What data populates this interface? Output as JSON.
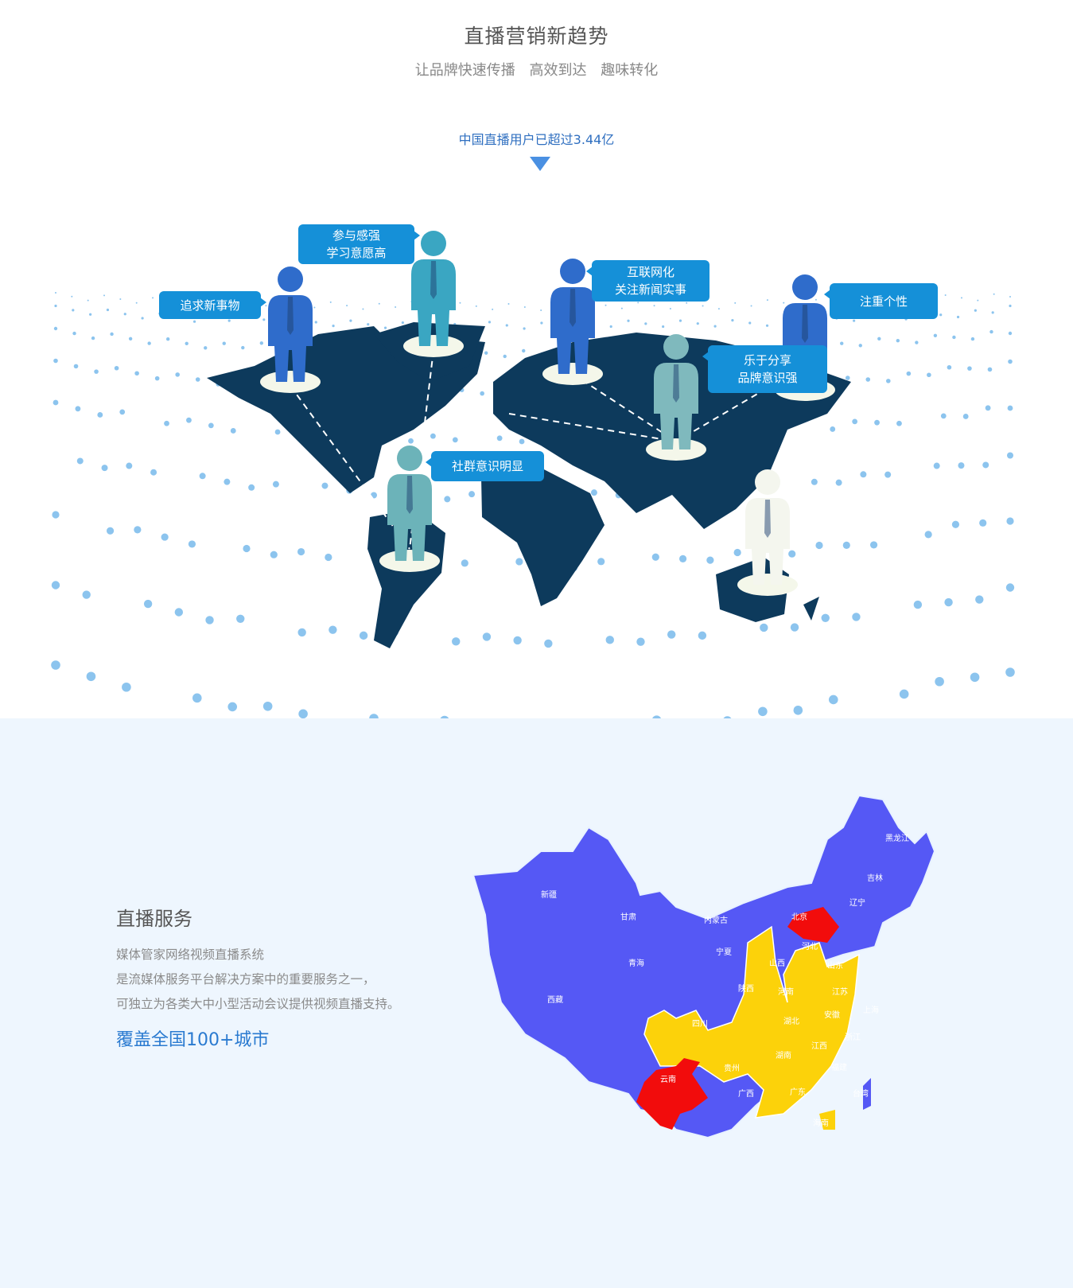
{
  "header": {
    "title": "直播营销新趋势",
    "subtitle": "让品牌快速传播 高效到达 趣味转化",
    "stat": "中国直播用户已超过3.44亿",
    "arrow_icon": "triangle-down-icon"
  },
  "world_map": {
    "land_color": "#0d3a5c",
    "dot_color": "#8cc4ee",
    "bubble_color": "#1590d8",
    "bubbles": [
      {
        "lines": [
          "追求新事物"
        ]
      },
      {
        "lines": [
          "参与感强",
          "学习意愿高"
        ]
      },
      {
        "lines": [
          "互联网化",
          "关注新闻实事"
        ]
      },
      {
        "lines": [
          "注重个性"
        ]
      },
      {
        "lines": [
          "乐于分享",
          "品牌意识强"
        ]
      },
      {
        "lines": [
          "社群意识明显"
        ]
      }
    ],
    "figure_colors": [
      "#2f6ccb",
      "#3aa6c2",
      "#2f6ccb",
      "#7fb9bd",
      "#2f6ccb",
      "#6cb3b9",
      "#f4f6ee"
    ]
  },
  "service": {
    "title": "直播服务",
    "description": [
      "媒体管家网络视频直播系统",
      "是流媒体服务平台解决方案中的重要服务之一，",
      "可独立为各类大中小型活动会议提供视频直播支持。"
    ],
    "coverage": "覆盖全国100+城市"
  },
  "china_map": {
    "colors": {
      "blue": "#5558f5",
      "yellow": "#fcd20a",
      "red": "#f20c0c"
    },
    "provinces": [
      "新疆",
      "西藏",
      "青海",
      "甘肃",
      "内蒙古",
      "宁夏",
      "陕西",
      "山西",
      "河北",
      "北京",
      "辽宁",
      "吉林",
      "黑龙江",
      "山东",
      "河南",
      "江苏",
      "上海",
      "安徽",
      "湖北",
      "四川",
      "浙江",
      "江西",
      "湖南",
      "贵州",
      "云南",
      "广西",
      "广东",
      "福建",
      "台湾",
      "海南"
    ]
  }
}
